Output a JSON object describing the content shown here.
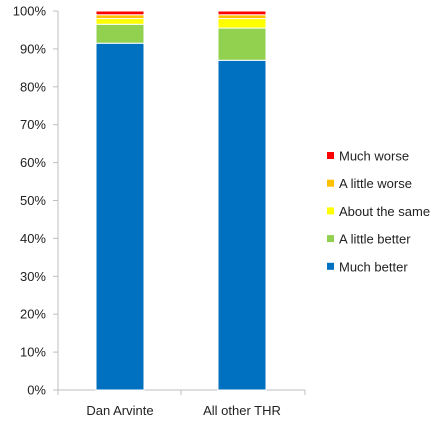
{
  "chart_data": {
    "type": "bar",
    "stacked": true,
    "percent": true,
    "categories": [
      "Dan Arvinte",
      "All other THR"
    ],
    "series": [
      {
        "name": "Much better",
        "color": "#0070c0",
        "values": [
          91.5,
          87.0
        ]
      },
      {
        "name": "A little better",
        "color": "#92d050",
        "values": [
          5.0,
          8.5
        ]
      },
      {
        "name": "About the same",
        "color": "#ffff00",
        "values": [
          1.5,
          2.5
        ]
      },
      {
        "name": "A little worse",
        "color": "#ffc000",
        "values": [
          1.0,
          1.0
        ]
      },
      {
        "name": "Much worse",
        "color": "#ff0000",
        "values": [
          1.0,
          1.0
        ]
      }
    ],
    "ylim": [
      0,
      100
    ],
    "yticks": [
      "0%",
      "10%",
      "20%",
      "30%",
      "40%",
      "50%",
      "60%",
      "70%",
      "80%",
      "90%",
      "100%"
    ],
    "grid": false,
    "legend_position": "right",
    "legend_order": [
      "Much worse",
      "A little worse",
      "About the same",
      "A little better",
      "Much better"
    ],
    "title": "",
    "xlabel": "",
    "ylabel": "",
    "axis_color": "#bfbfbf"
  }
}
